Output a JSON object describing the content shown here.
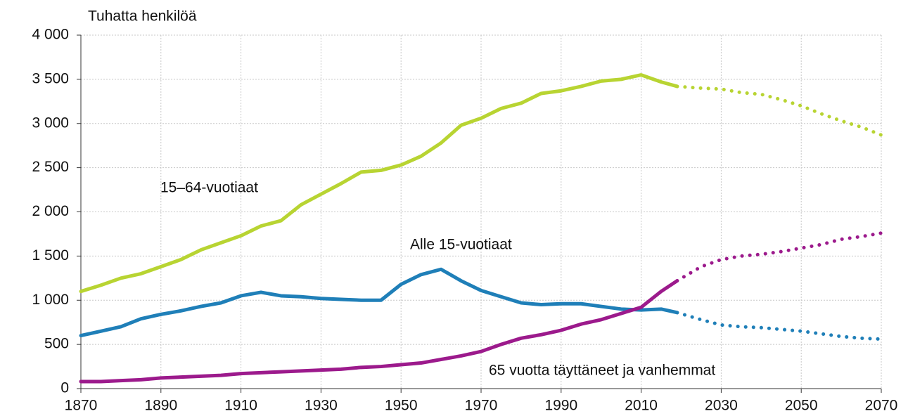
{
  "chart_data": {
    "type": "line",
    "axis_title": "Tuhatta henkilöä",
    "x": [
      1870,
      1875,
      1880,
      1885,
      1890,
      1895,
      1900,
      1905,
      1910,
      1915,
      1920,
      1925,
      1930,
      1935,
      1940,
      1945,
      1950,
      1955,
      1960,
      1965,
      1970,
      1975,
      1980,
      1985,
      1990,
      1995,
      2000,
      2005,
      2010,
      2015,
      2019,
      2025,
      2030,
      2035,
      2040,
      2045,
      2050,
      2055,
      2060,
      2065,
      2070
    ],
    "projection_from": 2019,
    "series": [
      {
        "name": "15–64-vuotiaat",
        "color": "#b8d432",
        "values": [
          1100,
          1170,
          1250,
          1300,
          1380,
          1460,
          1570,
          1650,
          1730,
          1840,
          1900,
          2080,
          2200,
          2320,
          2450,
          2470,
          2530,
          2630,
          2780,
          2980,
          3060,
          3170,
          3230,
          3340,
          3370,
          3420,
          3480,
          3500,
          3550,
          3470,
          3420,
          3400,
          3390,
          3350,
          3330,
          3270,
          3200,
          3110,
          3030,
          2960,
          2870
        ]
      },
      {
        "name": "Alle 15-vuotiaat",
        "color": "#1f7fb8",
        "values": [
          600,
          650,
          700,
          790,
          840,
          880,
          930,
          970,
          1050,
          1090,
          1050,
          1040,
          1020,
          1010,
          1000,
          1000,
          1180,
          1290,
          1350,
          1220,
          1110,
          1040,
          970,
          950,
          960,
          960,
          930,
          900,
          890,
          900,
          860,
          780,
          720,
          700,
          690,
          670,
          650,
          620,
          590,
          570,
          560
        ]
      },
      {
        "name": "65 vuotta täyttäneet ja vanhemmat",
        "color": "#9c1a8c",
        "values": [
          80,
          80,
          90,
          100,
          120,
          130,
          140,
          150,
          170,
          180,
          190,
          200,
          210,
          220,
          240,
          250,
          270,
          290,
          330,
          370,
          420,
          500,
          570,
          610,
          660,
          730,
          780,
          850,
          920,
          1100,
          1220,
          1380,
          1460,
          1500,
          1520,
          1550,
          1590,
          1630,
          1690,
          1720,
          1760
        ]
      }
    ],
    "xlim": [
      1870,
      2070
    ],
    "xticks": [
      1870,
      1890,
      1910,
      1930,
      1950,
      1970,
      1990,
      2010,
      2030,
      2050,
      2070
    ],
    "ylim": [
      0,
      4000
    ],
    "yticks": [
      0,
      500,
      {
        "value": 1000,
        "label": "1 000"
      },
      {
        "value": 1500,
        "label": "1 500"
      },
      {
        "value": 2000,
        "label": "2 000"
      },
      {
        "value": 2500,
        "label": "2 500"
      },
      {
        "value": 3000,
        "label": "3 000"
      },
      {
        "value": 3500,
        "label": "3 500"
      },
      {
        "value": 4000,
        "label": "4 000"
      }
    ],
    "grid": true
  }
}
